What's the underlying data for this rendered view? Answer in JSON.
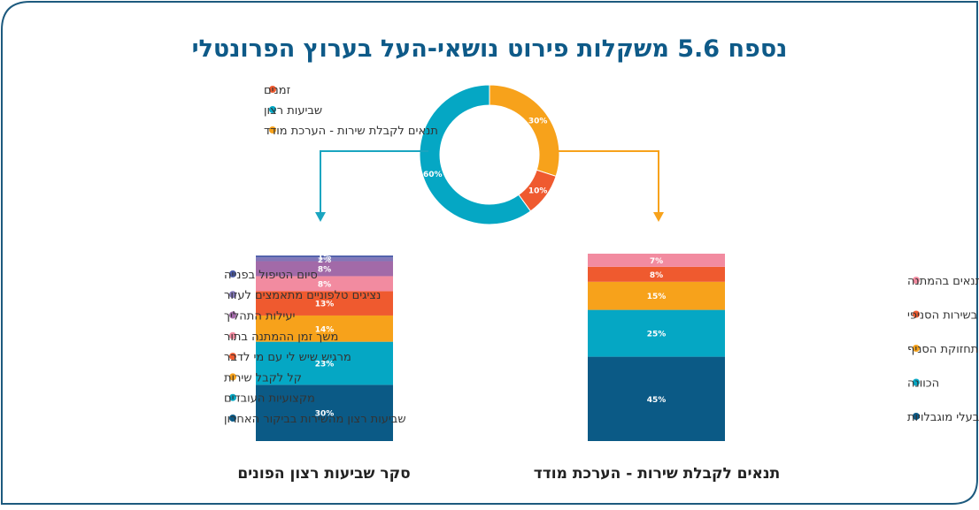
{
  "title": "נספח 5.6 משקלות פירוט נושאי-העל בערוץ הפרונטלי",
  "colors": {
    "frame": "#1d5a7e",
    "title": "#0e5a88",
    "arrow_left": "#1aa5c0",
    "arrow_right": "#f7a21b",
    "legend_text": "#333333",
    "subtitle": "#222222"
  },
  "chart_data": [
    {
      "type": "pie",
      "title": "",
      "categories": [
        "זמנים",
        "שביעות רצון",
        "תנאים לקבלת שירות - הערכת מודד"
      ],
      "values": [
        10,
        60,
        30
      ],
      "labels": [
        "10%",
        "60%",
        "30%"
      ],
      "colors": [
        "#ef5a2f",
        "#05a7c4",
        "#f7a21b"
      ],
      "legend_placement": "top-left"
    },
    {
      "type": "bar",
      "stacked": true,
      "title": "סקר שביעות רצון הפונים",
      "categories": [
        "שביעות רצון מהשירות בביקור האחרון",
        "מקצועיות העובדים",
        "קל לקבל שירות",
        "מרגיש שיש לי עם מי לדבר",
        "משך זמן ההמתנה בתור",
        "יעילות התהליך",
        "נציגים טלפוניים מתאמצים לעזור",
        "סיום הטיפול בפנייה"
      ],
      "values": [
        30,
        23,
        14,
        13,
        8,
        8,
        2,
        1
      ],
      "labels": [
        "30%",
        "23%",
        "14%",
        "13%",
        "8%",
        "8%",
        "2%",
        "1%"
      ],
      "colors": [
        "#0b5a86",
        "#05a7c4",
        "#f7a21b",
        "#ef5a2f",
        "#f28ba0",
        "#a26aa8",
        "#8277b8",
        "#4b5ba8"
      ],
      "ylim": [
        0,
        100
      ],
      "legend_placement": "left"
    },
    {
      "type": "bar",
      "stacked": true,
      "title": "תנאים לקבלת שירות - הערכת מודד",
      "categories": [
        "נגישות לבעלי מוגבלויות",
        "הכוונה",
        "תחזוקת הסניף",
        "נגישות המידע בשירות הסניפי",
        "רמת התנאים בהמתנה"
      ],
      "values": [
        45,
        25,
        15,
        8,
        7
      ],
      "labels": [
        "45%",
        "25%",
        "15%",
        "8%",
        "7%"
      ],
      "colors": [
        "#0b5a86",
        "#05a7c4",
        "#f7a21b",
        "#ef5a2f",
        "#f28ba0"
      ],
      "ylim": [
        0,
        100
      ],
      "legend_placement": "right"
    }
  ]
}
